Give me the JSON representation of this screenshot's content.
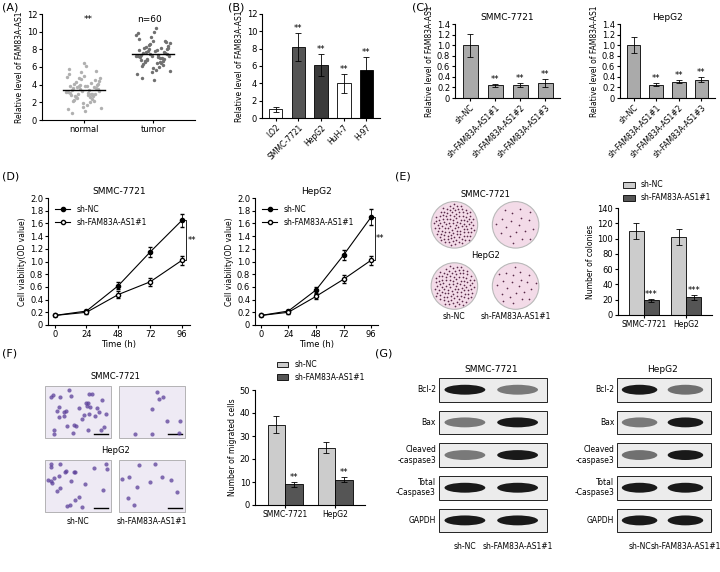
{
  "chart_data": [
    {
      "type": "scatter",
      "panel": "(A)",
      "categories": [
        "normal",
        "tumor"
      ],
      "values": [
        [
          3.2,
          2.8,
          4.1,
          3.6,
          1.9,
          5.2,
          3.0,
          2.5,
          4.4,
          3.8,
          0.8,
          2.2,
          3.5,
          4.9,
          3.1,
          2.7,
          5.6,
          1.5,
          3.9,
          4.2,
          2.9,
          3.3,
          6.1,
          2.1,
          3.7,
          4.6,
          1.2,
          3.4,
          2.6,
          4.0,
          5.0,
          3.1,
          2.4,
          3.8,
          4.7,
          1.7,
          3.6,
          2.9,
          5.4,
          3.2,
          2.0,
          4.3,
          3.5,
          6.4,
          2.8,
          3.0,
          4.8,
          1.4,
          3.9,
          2.3,
          4.5,
          3.3,
          5.8,
          2.6,
          3.7,
          4.1,
          1.0,
          3.4,
          2.7,
          4.0
        ],
        [
          7.2,
          6.5,
          8.1,
          7.6,
          5.4,
          9.2,
          7.0,
          6.8,
          8.4,
          7.8,
          4.8,
          6.2,
          7.5,
          9.6,
          7.1,
          6.7,
          8.8,
          5.9,
          7.9,
          8.2,
          6.9,
          7.3,
          10.4,
          6.1,
          7.7,
          8.6,
          5.2,
          7.4,
          6.6,
          8.0,
          9.0,
          7.1,
          6.4,
          7.8,
          8.7,
          5.7,
          7.6,
          6.9,
          9.4,
          7.2,
          6.0,
          8.3,
          7.5,
          10.0,
          6.8,
          7.0,
          8.5,
          5.5,
          7.9,
          6.3,
          8.9,
          7.3,
          9.8,
          6.6,
          7.7,
          8.1,
          4.5,
          7.4,
          6.7,
          8.0
        ]
      ],
      "colors": [
        "#b0b0b0",
        "#707070"
      ],
      "annotations": [
        "**",
        "n=60"
      ],
      "ylabel": "Relative level of FAM83A-AS1",
      "ylim": [
        0,
        12
      ],
      "yticks": [
        0,
        2,
        4,
        6,
        8,
        10,
        12
      ]
    },
    {
      "type": "bar",
      "panel": "(B)",
      "categories": [
        "LO2",
        "SMMC-7721",
        "HepG2",
        "HuH-7",
        "H-97"
      ],
      "values": [
        1.0,
        8.2,
        6.1,
        4.0,
        5.5
      ],
      "errors": [
        0.25,
        1.6,
        1.3,
        1.1,
        1.5
      ],
      "colors": [
        "#ffffff",
        "#555555",
        "#3a3a3a",
        "#ffffff",
        "#000000"
      ],
      "annotations": [
        null,
        "**",
        "**",
        "**",
        "**"
      ],
      "ylabel": "Relative level of FAM83A-AS1",
      "ylim": [
        0,
        12
      ],
      "yticks": [
        0,
        2,
        4,
        6,
        8,
        10,
        12
      ]
    },
    {
      "type": "bar",
      "panel": "(C)",
      "title": "SMMC-7721",
      "categories": [
        "sh-NC",
        "sh-FAM83A-AS1#1",
        "sh-FAM83A-AS1#2",
        "sh-FAM83A-AS1#3"
      ],
      "values": [
        1.0,
        0.24,
        0.25,
        0.28
      ],
      "errors": [
        0.22,
        0.03,
        0.04,
        0.08
      ],
      "color": "#aaaaaa",
      "annotations": [
        null,
        "**",
        "**",
        "**"
      ],
      "ylabel": "Relative level of FAM83A-AS1",
      "ylim": [
        0,
        1.4
      ],
      "yticks": [
        0,
        0.2,
        0.4,
        0.6,
        0.8,
        1.0,
        1.2,
        1.4
      ]
    },
    {
      "type": "bar",
      "title": "HepG2",
      "categories": [
        "sh-NC",
        "sh-FAM83A-AS1#1",
        "sh-FAM83A-AS1#2",
        "sh-FAM83A-AS1#3"
      ],
      "values": [
        1.0,
        0.25,
        0.31,
        0.35
      ],
      "errors": [
        0.15,
        0.03,
        0.03,
        0.05
      ],
      "color": "#aaaaaa",
      "annotations": [
        null,
        "**",
        "**",
        "**"
      ],
      "ylabel": "Relative level of FAM83A-AS1",
      "ylim": [
        0,
        1.4
      ],
      "yticks": [
        0,
        0.2,
        0.4,
        0.6,
        0.8,
        1.0,
        1.2,
        1.4
      ]
    },
    {
      "type": "line",
      "panel": "(D)",
      "title": "SMMC-7721",
      "x": [
        0,
        24,
        48,
        72,
        96
      ],
      "series": [
        {
          "name": "sh-NC",
          "color": "#000000",
          "marker": "filled_circle",
          "values": [
            0.15,
            0.22,
            0.62,
            1.15,
            1.65
          ],
          "errors": [
            0.01,
            0.02,
            0.06,
            0.08,
            0.1
          ]
        },
        {
          "name": "sh-FAM83A-AS1#1",
          "color": "#000000",
          "marker": "open_circle",
          "values": [
            0.15,
            0.2,
            0.48,
            0.68,
            1.02
          ],
          "errors": [
            0.01,
            0.02,
            0.05,
            0.06,
            0.07
          ]
        }
      ],
      "annotations": [
        "**"
      ],
      "legend": "upper left",
      "xlabel": "Time (h)",
      "ylabel": "Cell viability(OD value)",
      "xlim": [
        -5,
        102
      ],
      "xticks": [
        0,
        24,
        48,
        72,
        96
      ],
      "ylim": [
        0,
        2.0
      ],
      "yticks": [
        0,
        0.2,
        0.4,
        0.6,
        0.8,
        1.0,
        1.2,
        1.4,
        1.6,
        1.8,
        2.0
      ]
    },
    {
      "type": "line",
      "title": "HepG2",
      "x": [
        0,
        24,
        48,
        72,
        96
      ],
      "series": [
        {
          "name": "sh-NC",
          "color": "#000000",
          "marker": "filled_circle",
          "values": [
            0.15,
            0.22,
            0.55,
            1.1,
            1.7
          ],
          "errors": [
            0.01,
            0.02,
            0.05,
            0.08,
            0.12
          ]
        },
        {
          "name": "sh-FAM83A-AS1#1",
          "color": "#000000",
          "marker": "open_circle",
          "values": [
            0.15,
            0.2,
            0.45,
            0.72,
            1.02
          ],
          "errors": [
            0.01,
            0.02,
            0.04,
            0.06,
            0.07
          ]
        }
      ],
      "annotations": [
        "**"
      ],
      "legend": "upper left",
      "xlabel": "Time (h)",
      "ylabel": "Cell viability(OD value)",
      "xlim": [
        -5,
        102
      ],
      "xticks": [
        0,
        24,
        48,
        72,
        96
      ],
      "ylim": [
        0,
        2.0
      ],
      "yticks": [
        0,
        0.2,
        0.4,
        0.6,
        0.8,
        1.0,
        1.2,
        1.4,
        1.6,
        1.8,
        2.0
      ]
    },
    {
      "type": "bar",
      "categories": [
        "SMMC-7721",
        "HepG2"
      ],
      "series": [
        {
          "name": "sh-NC",
          "color": "#cccccc",
          "values": [
            110,
            102
          ],
          "errors": [
            11,
            10
          ]
        },
        {
          "name": "sh-FAM83A-AS1#1",
          "color": "#555555",
          "values": [
            19,
            23
          ],
          "errors": [
            2,
            3
          ],
          "annotations": [
            "***",
            "***"
          ]
        }
      ],
      "legend": "upper right",
      "ylabel": "Number of colonies",
      "ylim": [
        0,
        140
      ],
      "yticks": [
        0,
        20,
        40,
        60,
        80,
        100,
        120,
        140
      ]
    },
    {
      "type": "bar",
      "categories": [
        "SMMC-7721",
        "HepG2"
      ],
      "series": [
        {
          "name": "sh-NC",
          "color": "#cccccc",
          "values": [
            35,
            25
          ],
          "errors": [
            3.5,
            2.5
          ]
        },
        {
          "name": "sh-FAM83A-AS1#1",
          "color": "#555555",
          "values": [
            9,
            11
          ],
          "errors": [
            1,
            1
          ],
          "annotations": [
            "**",
            "**"
          ]
        }
      ],
      "legend": "upper right",
      "ylabel": "Number of migrated cells",
      "ylim": [
        0,
        50
      ],
      "yticks": [
        0,
        10,
        20,
        30,
        40,
        50
      ]
    }
  ],
  "images": [
    {
      "panel": "(E)",
      "kind": "dish",
      "rows": [
        "SMMC-7721",
        "HepG2"
      ],
      "columns": [
        "sh-NC",
        "sh-FAM83A-AS1#1"
      ]
    },
    {
      "panel": "(F)",
      "kind": "well",
      "rows": [
        "SMMC-7721",
        "HepG2"
      ],
      "columns": [
        "sh-NC",
        "sh-FAM83A-AS1#1"
      ]
    }
  ],
  "blots": {
    "panel": "(G)",
    "cell_lines": [
      {
        "title": "SMMC-7721",
        "lanes": [
          "sh-NC",
          "sh-FAM83A-AS1#1"
        ],
        "proteins": [
          {
            "name": "Bcl-2",
            "intensity": [
              1.0,
              0.5
            ]
          },
          {
            "name": "Bax",
            "intensity": [
              0.5,
              1.0
            ]
          },
          {
            "name": "Cleaved\n-caspase3",
            "intensity": [
              0.5,
              1.0
            ]
          },
          {
            "name": "Total\n-Caspase3",
            "intensity": [
              1.0,
              1.0
            ]
          },
          {
            "name": "GAPDH",
            "intensity": [
              1.0,
              1.0
            ]
          }
        ]
      },
      {
        "title": "HepG2",
        "lanes": [
          "sh-NC",
          "sh-FAM83A-AS1#1"
        ],
        "proteins": [
          {
            "name": "Bcl-2",
            "intensity": [
              1.0,
              0.55
            ]
          },
          {
            "name": "Bax",
            "intensity": [
              0.5,
              1.0
            ]
          },
          {
            "name": "Cleaved\n-caspase3",
            "intensity": [
              0.55,
              1.0
            ]
          },
          {
            "name": "Total\n-Caspase3",
            "intensity": [
              1.0,
              1.0
            ]
          },
          {
            "name": "GAPDH",
            "intensity": [
              1.0,
              1.0
            ]
          }
        ]
      }
    ]
  }
}
